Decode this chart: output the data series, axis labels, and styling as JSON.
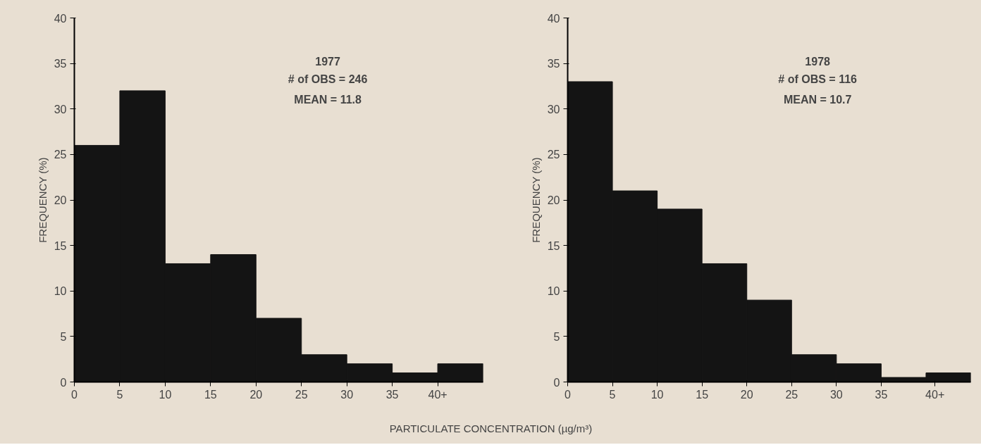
{
  "chart_data": [
    {
      "type": "histogram",
      "bins": [
        0,
        5,
        10,
        15,
        20,
        25,
        30,
        35,
        40,
        45
      ],
      "values": [
        26,
        32,
        13,
        14,
        7,
        3,
        2,
        1,
        2
      ],
      "color": "#141414",
      "xlim": [
        0,
        45
      ],
      "xticks": [
        0,
        5,
        10,
        15,
        20,
        25,
        30,
        35,
        {
          "value": 40,
          "label": "40+"
        }
      ],
      "ylim": [
        0,
        40
      ],
      "yticks": [
        0,
        5,
        10,
        15,
        20,
        25,
        30,
        35,
        40
      ],
      "ylabel": "FREQUENCY (%)",
      "xlabel": "PARTICULATE CONCENTRATION (µg/m³)",
      "grid": false,
      "annotations": [
        "1977",
        "# of OBS = 246",
        "MEAN = 11.8"
      ]
    },
    {
      "type": "histogram",
      "bins": [
        0,
        5,
        10,
        15,
        20,
        25,
        30,
        35,
        40,
        45
      ],
      "values": [
        33,
        21,
        19,
        13,
        9,
        3,
        2,
        0.5,
        1
      ],
      "color": "#141414",
      "xlim": [
        0,
        45
      ],
      "xticks": [
        0,
        5,
        10,
        15,
        20,
        25,
        30,
        35,
        {
          "value": 41,
          "label": "40+"
        }
      ],
      "ylim": [
        0,
        40
      ],
      "yticks": [
        0,
        5,
        10,
        15,
        20,
        25,
        30,
        35,
        40
      ],
      "ylabel": "FREQUENCY (%)",
      "grid": false,
      "annotations": [
        "1978",
        "# of OBS = 116",
        "MEAN = 10.7"
      ]
    }
  ]
}
